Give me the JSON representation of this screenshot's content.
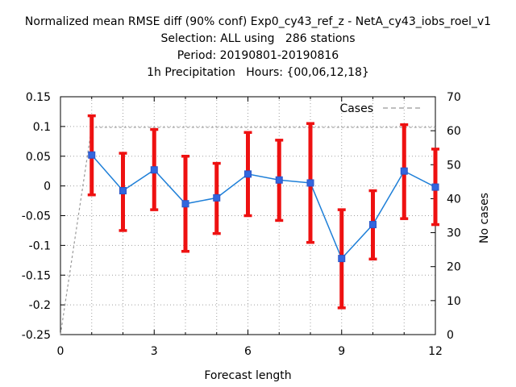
{
  "chart_data": {
    "type": "line",
    "title_lines": [
      "Normalized mean RMSE diff (90% conf) Exp0_cy43_ref_z - NetA_cy43_iobs_roel_v1",
      "Selection: ALL using   286 stations",
      "Period: 20190801-20190816",
      "1h Precipitation   Hours: {00,06,12,18}"
    ],
    "xlabel": "Forecast length",
    "ylabel": "",
    "y2label": "No cases",
    "xlim": [
      0,
      12
    ],
    "ylim": [
      -0.25,
      0.15
    ],
    "y2lim": [
      0,
      70
    ],
    "x_ticks": [
      0,
      3,
      6,
      9,
      12
    ],
    "y_ticks": [
      -0.25,
      -0.2,
      -0.15,
      -0.1,
      -0.05,
      0,
      0.05,
      0.1,
      0.15
    ],
    "y_tick_labels": [
      "-0.25",
      "-0.2",
      "-0.15",
      "-0.1",
      "-0.05",
      "0",
      "0.05",
      "0.1",
      "0.15"
    ],
    "y2_ticks": [
      0,
      10,
      20,
      30,
      40,
      50,
      60,
      70
    ],
    "grid": true,
    "legend": {
      "position": "top-right",
      "entries": [
        "Cases"
      ]
    },
    "series": [
      {
        "role": "mean",
        "x": [
          1,
          2,
          3,
          4,
          5,
          6,
          7,
          8,
          9,
          10,
          11,
          12
        ],
        "values": [
          0.052,
          -0.008,
          0.027,
          -0.03,
          -0.02,
          0.02,
          0.01,
          0.005,
          -0.122,
          -0.065,
          0.025,
          -0.002
        ],
        "color": "#1e7fd8"
      },
      {
        "role": "error_bars",
        "x": [
          1,
          2,
          3,
          4,
          5,
          6,
          7,
          8,
          9,
          10,
          11,
          12
        ],
        "lower": [
          -0.015,
          -0.075,
          -0.04,
          -0.11,
          -0.08,
          -0.05,
          -0.058,
          -0.095,
          -0.205,
          -0.123,
          -0.055,
          -0.065
        ],
        "upper": [
          0.118,
          0.055,
          0.095,
          0.05,
          0.038,
          0.09,
          0.077,
          0.105,
          -0.04,
          -0.008,
          0.103,
          0.062
        ],
        "color": "#ee1111"
      },
      {
        "name": "Cases",
        "axis": "y2",
        "x": [
          0,
          1,
          2,
          3,
          4,
          5,
          6,
          7,
          8,
          9,
          10,
          11,
          12
        ],
        "values": [
          0,
          61,
          61,
          61,
          61,
          61,
          61,
          61,
          61,
          61,
          61,
          61,
          61
        ],
        "color": "#999999",
        "style": "dashed"
      }
    ]
  }
}
